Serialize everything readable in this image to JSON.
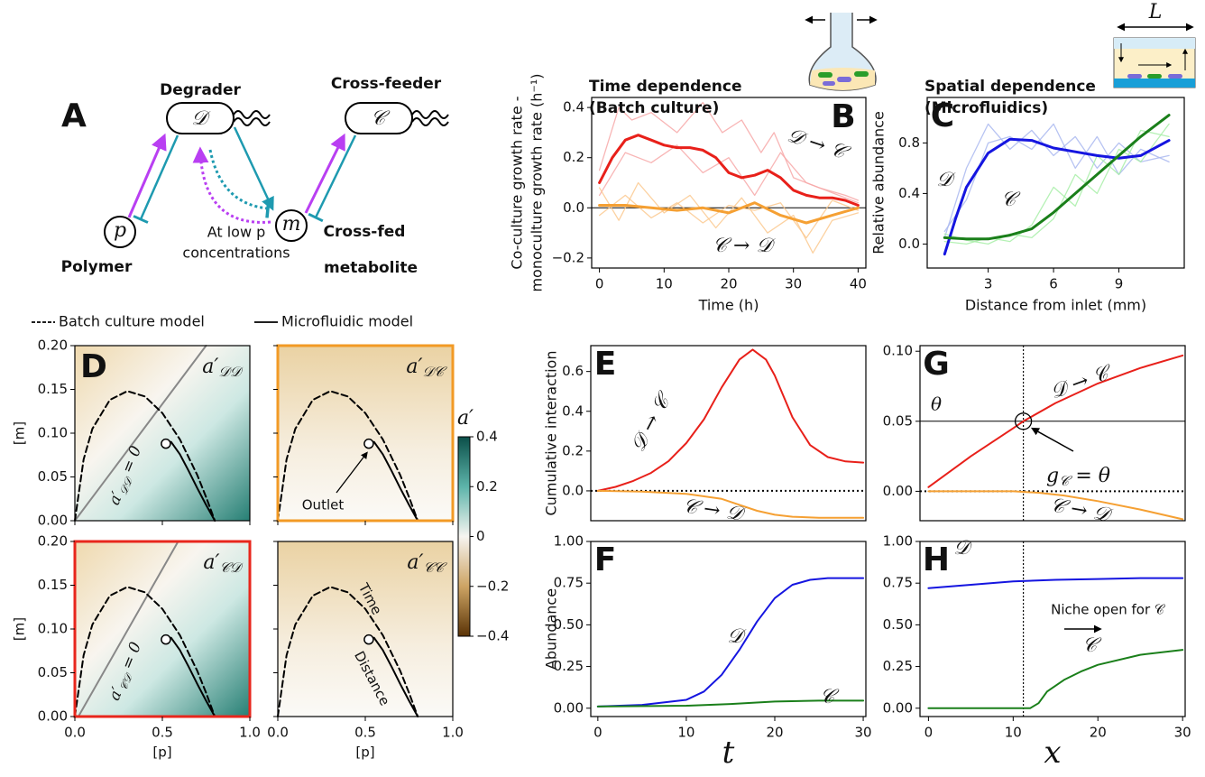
{
  "diagram": {
    "panel": "A",
    "cells": [
      {
        "label": "Degrader",
        "symbol": "𝒟"
      },
      {
        "label": "Cross-feeder",
        "symbol": "𝒞"
      }
    ],
    "nodes": [
      {
        "symbol": "p",
        "label": [
          "Polymer"
        ]
      },
      {
        "symbol": "m",
        "label": [
          "Cross-fed",
          "metabolite"
        ]
      }
    ],
    "note": [
      "At low p",
      "concentrations"
    ]
  },
  "chart_data": [
    {
      "type": "line",
      "panel": "B",
      "title": [
        "Time dependence",
        "(Batch culture)"
      ],
      "ylabel": [
        "Co-culture growth rate -",
        "monoculture growth rate (h⁻¹)"
      ],
      "xlabel": "Time (h)",
      "xlim": [
        -1.2,
        41.2
      ],
      "ylim": [
        -0.24,
        0.44
      ],
      "xticks": [
        0,
        10,
        20,
        30,
        40
      ],
      "yticks": [
        0.4,
        0.2,
        {
          "value": 0,
          "label": "0.0"
        },
        {
          "value": -0.2,
          "label": "−0.2"
        }
      ],
      "hline": 0,
      "annotations": [
        "𝒟 → 𝒞",
        "𝒞 → 𝒟"
      ],
      "replicates": [
        {
          "color": "#f7a8a8",
          "x": [
            0,
            3,
            5,
            8,
            12,
            16,
            19,
            22,
            25,
            27,
            30,
            34,
            38,
            40
          ],
          "values": [
            0.15,
            0.4,
            0.35,
            0.38,
            0.3,
            0.42,
            0.3,
            0.35,
            0.22,
            0.3,
            0.12,
            0.08,
            0.05,
            0.03
          ]
        },
        {
          "color": "#f7a8a8",
          "x": [
            0,
            4,
            8,
            12,
            16,
            20,
            24,
            28,
            32,
            36,
            40
          ],
          "values": [
            0.05,
            0.22,
            0.18,
            0.25,
            0.14,
            0.2,
            0.05,
            0.22,
            0.1,
            0.06,
            0.02
          ]
        },
        {
          "color": "#fbc98f",
          "x": [
            0,
            3,
            6,
            10,
            14,
            18,
            22,
            26,
            30,
            33,
            36,
            40
          ],
          "values": [
            0.08,
            -0.05,
            0.1,
            -0.02,
            0.05,
            -0.08,
            0.04,
            -0.1,
            -0.03,
            -0.18,
            -0.05,
            -0.02
          ]
        },
        {
          "color": "#fbc98f",
          "x": [
            0,
            4,
            8,
            12,
            16,
            20,
            24,
            28,
            32,
            36,
            40
          ],
          "values": [
            -0.03,
            0.05,
            -0.04,
            0.02,
            -0.06,
            0.01,
            -0.01,
            0.02,
            -0.12,
            0.03,
            -0.01
          ]
        }
      ],
      "series": [
        {
          "color": "#e8201a",
          "x": [
            0,
            2,
            4,
            6,
            8,
            10,
            12,
            14,
            16,
            18,
            20,
            22,
            24,
            26,
            28,
            30,
            32,
            34,
            36,
            38,
            40
          ],
          "values": [
            0.1,
            0.2,
            0.27,
            0.29,
            0.27,
            0.25,
            0.24,
            0.24,
            0.23,
            0.2,
            0.14,
            0.12,
            0.13,
            0.15,
            0.12,
            0.07,
            0.05,
            0.04,
            0.04,
            0.03,
            0.01
          ]
        },
        {
          "color": "#f5a033",
          "x": [
            0,
            4,
            8,
            12,
            16,
            20,
            24,
            28,
            32,
            36,
            40
          ],
          "values": [
            0.01,
            0.01,
            0,
            -0.01,
            0,
            -0.02,
            0.02,
            -0.03,
            -0.06,
            -0.03,
            0
          ]
        }
      ]
    },
    {
      "type": "line",
      "panel": "C",
      "title": [
        "Spatial dependence",
        "(Microfluidics)"
      ],
      "icon_label": "L",
      "ylabel": "Relative abundance",
      "xlabel": "Distance from inlet (mm)",
      "xlim": [
        0.2,
        12.0
      ],
      "ylim": [
        -0.19,
        1.16
      ],
      "xticks": [
        3,
        6,
        9
      ],
      "yticks": [
        0.8,
        0.4,
        {
          "value": 0,
          "label": "0.0"
        }
      ],
      "annotations": [
        "𝒟",
        "𝒞"
      ],
      "replicates": [
        {
          "color": "#aab8f0",
          "x": [
            1,
            2,
            3,
            4,
            5,
            6,
            7,
            8,
            9,
            10,
            11.3
          ],
          "values": [
            0.05,
            0.6,
            0.95,
            0.75,
            0.9,
            0.7,
            0.85,
            0.6,
            0.8,
            0.65,
            0.7
          ]
        },
        {
          "color": "#aab8f0",
          "x": [
            1,
            2,
            3,
            4,
            5,
            6,
            7,
            8,
            9,
            10,
            11.3
          ],
          "values": [
            0.1,
            0.35,
            0.8,
            0.85,
            0.75,
            0.95,
            0.6,
            0.85,
            0.55,
            0.75,
            0.65
          ]
        },
        {
          "color": "#a8eea8",
          "x": [
            1,
            2,
            3,
            4,
            5,
            6,
            7,
            8,
            9,
            10,
            11.3
          ],
          "values": [
            0.02,
            0,
            0.05,
            0.02,
            0.15,
            0.45,
            0.3,
            0.7,
            0.55,
            0.9,
            0.85
          ]
        },
        {
          "color": "#a8eea8",
          "x": [
            1,
            2,
            3,
            4,
            5,
            6,
            7,
            8,
            9,
            10,
            11.3
          ],
          "values": [
            0.08,
            0.03,
            0,
            0.08,
            0.05,
            0.2,
            0.55,
            0.4,
            0.75,
            0.65,
            0.95
          ]
        }
      ],
      "series": [
        {
          "color": "#1515e0",
          "x": [
            1,
            1.5,
            2,
            3,
            4,
            5,
            6,
            7,
            8,
            9,
            10,
            11.3
          ],
          "values": [
            -0.08,
            0.2,
            0.45,
            0.72,
            0.83,
            0.82,
            0.76,
            0.73,
            0.7,
            0.68,
            0.7,
            0.82
          ]
        },
        {
          "color": "#1a7f1a",
          "x": [
            1,
            2,
            3,
            4,
            5,
            6,
            7,
            8,
            9,
            10,
            11.3
          ],
          "values": [
            0.05,
            0.04,
            0.04,
            0.07,
            0.12,
            0.25,
            0.4,
            0.55,
            0.7,
            0.85,
            1.02
          ]
        }
      ]
    },
    {
      "type": "phase",
      "panel": "D",
      "xlabel": "[p]",
      "ylabel": "[m]",
      "xlim": [
        0,
        1
      ],
      "ylim": [
        0,
        0.2
      ],
      "xticks": [
        {
          "value": 0,
          "label": "0.0"
        },
        0.5,
        {
          "value": 1,
          "label": "1.0"
        }
      ],
      "yticks": [
        {
          "value": 0,
          "label": "0.00"
        },
        0.05,
        {
          "value": 0.1,
          "label": "0.10"
        },
        0.15,
        {
          "value": 0.2,
          "label": "0.20"
        }
      ],
      "series": [
        {
          "name": "Batch culture model",
          "color": "#000000",
          "dashed": true,
          "x": [
            0,
            0.05,
            0.1,
            0.2,
            0.3,
            0.4,
            0.5,
            0.6,
            0.7,
            0.75,
            0.8
          ],
          "values": [
            0,
            0.07,
            0.105,
            0.138,
            0.148,
            0.142,
            0.123,
            0.093,
            0.052,
            0.027,
            0
          ]
        },
        {
          "name": "Microfluidic model",
          "color": "#000000",
          "x": [
            0.55,
            0.6,
            0.65,
            0.7,
            0.75,
            0.8
          ],
          "values": [
            0.09,
            0.076,
            0.057,
            0.037,
            0.018,
            0
          ]
        }
      ],
      "outlet": {
        "x": 0.52,
        "value": 0.088
      },
      "panels": [
        {
          "title": {
            "main": "a′",
            "sub": "𝒟𝒟"
          },
          "zero_line": {
            "color": "#888888",
            "x": [
              0,
              0.75
            ],
            "values": [
              0,
              0.2
            ]
          },
          "zero_label": {
            "main": "a′",
            "sub": "𝒟𝒟",
            "rest": " = 0"
          }
        },
        {
          "title": {
            "main": "a′",
            "sub": "𝒟𝒞"
          },
          "frame_color": "#f29a25",
          "annotations": [
            "Outlet"
          ]
        },
        {
          "title": {
            "main": "a′",
            "sub": "𝒞𝒟"
          },
          "frame_color": "#e8261c",
          "zero_line": {
            "color": "#888888",
            "x": [
              0.02,
              0.59
            ],
            "values": [
              0,
              0.2
            ]
          },
          "zero_label": {
            "main": "a′",
            "sub": "𝒞𝒟",
            "rest": " = 0"
          }
        },
        {
          "title": {
            "main": "a′",
            "sub": "𝒞𝒞"
          },
          "annotations": [
            "Time",
            "Distance"
          ]
        }
      ]
    },
    {
      "type": "colorbar",
      "label": "a′",
      "ylim": [
        -0.4,
        0.4
      ],
      "yticks": [
        0.4,
        0.2,
        0,
        {
          "value": -0.2,
          "label": "−0.2"
        },
        {
          "value": -0.4,
          "label": "−0.4"
        }
      ]
    },
    {
      "type": "line",
      "panel": "E",
      "ylabel": "Cumulative interaction",
      "xlim": [
        -0.8,
        30.3
      ],
      "ylim": [
        -0.15,
        0.73
      ],
      "yticks": [
        {
          "value": 0,
          "label": "0.0"
        },
        0.2,
        0.4,
        0.6
      ],
      "hline": 0,
      "hline_dotted": true,
      "annotations": [
        "𝒟 → 𝒞",
        "𝒞 → 𝒟"
      ],
      "series": [
        {
          "color": "#e8201a",
          "x": [
            0,
            2,
            4,
            6,
            8,
            10,
            12,
            14,
            16,
            17.5,
            19,
            20,
            22,
            24,
            26,
            28,
            30
          ],
          "values": [
            0,
            0.02,
            0.05,
            0.09,
            0.15,
            0.24,
            0.36,
            0.52,
            0.66,
            0.71,
            0.66,
            0.58,
            0.37,
            0.23,
            0.17,
            0.148,
            0.142
          ]
        },
        {
          "color": "#f5a033",
          "x": [
            0,
            5,
            10,
            14,
            16,
            18,
            20,
            22,
            25,
            30
          ],
          "values": [
            0,
            -0.004,
            -0.015,
            -0.04,
            -0.07,
            -0.1,
            -0.12,
            -0.13,
            -0.135,
            -0.135
          ]
        }
      ]
    },
    {
      "type": "line",
      "panel": "F",
      "ylabel": "Abundance",
      "xlabel": "t",
      "xlim": [
        -0.8,
        30.3
      ],
      "ylim": [
        -0.05,
        1.0
      ],
      "xticks": [
        0,
        10,
        20,
        30
      ],
      "yticks": [
        {
          "value": 0,
          "label": "0.00"
        },
        0.25,
        {
          "value": 0.5,
          "label": "0.50"
        },
        0.75,
        {
          "value": 1,
          "label": "1.00"
        }
      ],
      "annotations": [
        "𝒟",
        "𝒞"
      ],
      "series": [
        {
          "color": "#1515e0",
          "x": [
            0,
            5,
            10,
            12,
            14,
            16,
            18,
            20,
            22,
            24,
            26,
            30
          ],
          "values": [
            0.01,
            0.02,
            0.05,
            0.1,
            0.2,
            0.35,
            0.52,
            0.66,
            0.74,
            0.77,
            0.78,
            0.78
          ]
        },
        {
          "color": "#1a7f1a",
          "x": [
            0,
            10,
            15,
            20,
            25,
            30
          ],
          "values": [
            0.01,
            0.015,
            0.025,
            0.04,
            0.045,
            0.045
          ]
        }
      ]
    },
    {
      "type": "line",
      "panel": "G",
      "xlim": [
        -1.0,
        30.3
      ],
      "ylim": [
        -0.021,
        0.104
      ],
      "yticks": [
        {
          "value": 0,
          "label": "0.00"
        },
        0.05,
        {
          "value": 0.1,
          "label": "0.10"
        }
      ],
      "hline": 0,
      "hline_dotted": true,
      "vline": 11.2,
      "threshold": {
        "value": 0.05,
        "label": "θ"
      },
      "marker": {
        "x": 11.2,
        "value": 0.05
      },
      "marker_label": {
        "main": "g",
        "sub": "𝒞",
        "rest": " = θ"
      },
      "annotations": [
        "𝒟 → 𝒞",
        "𝒞 → 𝒟"
      ],
      "series": [
        {
          "color": "#e8201a",
          "x": [
            0,
            5,
            10,
            11.2,
            15,
            20,
            25,
            30
          ],
          "values": [
            0.003,
            0.025,
            0.045,
            0.05,
            0.063,
            0.077,
            0.088,
            0.097
          ]
        },
        {
          "color": "#f5a033",
          "x": [
            0,
            10,
            13,
            16,
            20,
            25,
            30
          ],
          "values": [
            0,
            0,
            -0.001,
            -0.003,
            -0.007,
            -0.013,
            -0.02
          ]
        }
      ]
    },
    {
      "type": "line",
      "panel": "H",
      "xlabel": "x",
      "xlim": [
        -1.0,
        30.3
      ],
      "ylim": [
        -0.05,
        1.0
      ],
      "xticks": [
        0,
        10,
        20,
        30
      ],
      "yticks": [
        {
          "value": 0,
          "label": "0.00"
        },
        0.25,
        {
          "value": 0.5,
          "label": "0.50"
        },
        0.75,
        {
          "value": 1,
          "label": "1.00"
        }
      ],
      "vline": 11.2,
      "annotations": [
        "𝒟",
        "Niche open for 𝒞",
        "𝒞"
      ],
      "series": [
        {
          "color": "#1515e0",
          "x": [
            0,
            5,
            10,
            15,
            20,
            25,
            30
          ],
          "values": [
            0.72,
            0.74,
            0.76,
            0.77,
            0.775,
            0.78,
            0.78
          ]
        },
        {
          "color": "#1a7f1a",
          "x": [
            0,
            12,
            13,
            14,
            16,
            18,
            20,
            25,
            30
          ],
          "values": [
            0,
            0,
            0.03,
            0.1,
            0.17,
            0.22,
            0.26,
            0.32,
            0.35
          ]
        }
      ]
    }
  ]
}
